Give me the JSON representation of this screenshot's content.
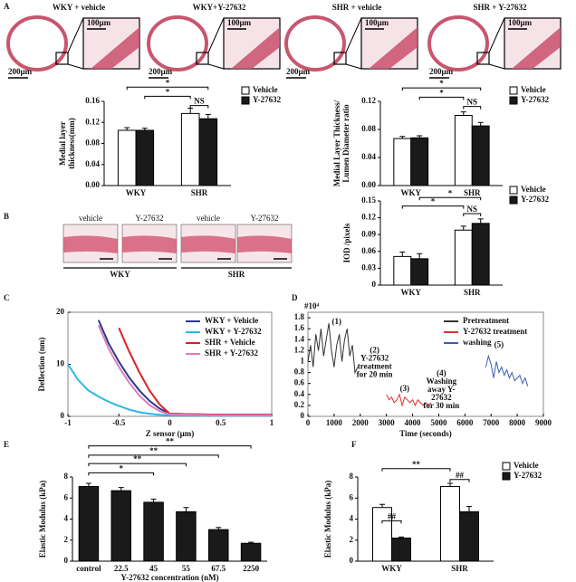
{
  "panel_labels": [
    "A",
    "B",
    "C",
    "D",
    "E",
    "F"
  ],
  "a_images": [
    {
      "caption": "WKY + vehicle",
      "zoom_scale": "100µm",
      "scale": "200µm"
    },
    {
      "caption": "WKY+Y-27632",
      "zoom_scale": "100µm",
      "scale": "200µm"
    },
    {
      "caption": "SHR + vehicle",
      "zoom_scale": "100µm",
      "scale": "200µm"
    },
    {
      "caption": "SHR + Y-27632",
      "zoom_scale": "100µm",
      "scale": "200µm"
    }
  ],
  "b_images": {
    "labels": [
      "vehicle",
      "Y-27632",
      "vehicle",
      "Y-27632"
    ],
    "groups": [
      "WKY",
      "SHR"
    ]
  },
  "chart_data": [
    {
      "type": "bar",
      "ylabel": [
        "Medial layer",
        "thickness(mm)"
      ],
      "categories": [
        "WKY",
        "SHR"
      ],
      "series": [
        {
          "name": "Vehicle",
          "color": "#ffffff",
          "values": [
            0.105,
            0.137
          ],
          "errors": [
            0.005,
            0.01
          ]
        },
        {
          "name": "Y-27632",
          "color": "#1a1a1a",
          "values": [
            0.105,
            0.127
          ],
          "errors": [
            0.004,
            0.008
          ]
        }
      ],
      "ylim": [
        0,
        0.16
      ],
      "yticks": [
        {
          "value": 0,
          "label": "0.00"
        },
        0.04,
        0.08,
        0.12,
        0.16
      ],
      "annotations": [
        "*",
        "*",
        "NS"
      ],
      "legend": "right"
    },
    {
      "type": "bar",
      "ylabel": [
        "Medial Layer Thickness/",
        "Lumen Diameter ratio"
      ],
      "categories": [
        "WKY",
        "SHR"
      ],
      "series": [
        {
          "name": "Vehicle",
          "color": "#ffffff",
          "values": [
            0.067,
            0.1
          ],
          "errors": [
            0.003,
            0.005
          ]
        },
        {
          "name": "Y-27632",
          "color": "#1a1a1a",
          "values": [
            0.068,
            0.085
          ],
          "errors": [
            0.003,
            0.005
          ]
        }
      ],
      "ylim": [
        0,
        0.12
      ],
      "yticks": [
        {
          "value": 0,
          "label": "0.00"
        },
        0.04,
        0.08,
        0.12
      ],
      "annotations": [
        "*",
        "*",
        "NS"
      ],
      "legend": "right"
    },
    {
      "type": "bar",
      "ylabel": [
        "IOD /pixels"
      ],
      "categories": [
        "WKY",
        "SHR"
      ],
      "series": [
        {
          "name": "Vehicle",
          "color": "#ffffff",
          "values": [
            0.051,
            0.098
          ],
          "errors": [
            0.008,
            0.007
          ]
        },
        {
          "name": "Y-27632",
          "color": "#1a1a1a",
          "values": [
            0.047,
            0.11
          ],
          "errors": [
            0.009,
            0.008
          ]
        }
      ],
      "ylim": [
        0,
        0.15
      ],
      "yticks": [
        0,
        0.03,
        0.06,
        0.09,
        0.12,
        0.15
      ],
      "annotations": [
        "*",
        "*",
        "NS"
      ],
      "legend": "right"
    },
    {
      "type": "line",
      "xlabel": "Z sensor (µm)",
      "ylabel": [
        "Deflection (nm)"
      ],
      "x": [
        -1,
        -0.9,
        -0.8,
        -0.7,
        -0.6,
        -0.5,
        -0.4,
        -0.3,
        -0.2,
        -0.1,
        0,
        0.5,
        1
      ],
      "series": [
        {
          "name": "WKY + Vehicle",
          "color": "#2b3a8f",
          "values": [
            null,
            null,
            null,
            18.5,
            14,
            10.5,
            7.5,
            5,
            3,
            1.5,
            0.5,
            0.3,
            0.3
          ]
        },
        {
          "name": "WKY + Y-27632",
          "color": "#2ab7e6",
          "values": [
            10,
            7,
            5,
            3.8,
            2.8,
            2,
            1.3,
            0.8,
            0.5,
            0.3,
            0.2,
            0.1,
            0.1
          ]
        },
        {
          "name": "SHR + Vehicle",
          "color": "#e02020",
          "values": [
            null,
            null,
            null,
            null,
            null,
            17,
            12.5,
            8.5,
            5,
            2.3,
            0.5,
            0.3,
            0.3
          ]
        },
        {
          "name": "SHR + Y-27632",
          "color": "#e07bc0",
          "values": [
            null,
            null,
            null,
            17.5,
            13,
            9.5,
            6.5,
            4,
            2.2,
            1,
            0.4,
            0.2,
            0.2
          ]
        }
      ],
      "xlim": [
        -1,
        1
      ],
      "xticks": [
        -1,
        -0.5,
        0,
        0.5,
        1
      ],
      "ylim": [
        0,
        20
      ],
      "yticks": [
        0,
        10,
        20
      ],
      "legend": "upper right"
    },
    {
      "type": "line",
      "xlabel": "Time (seconds)",
      "y_multiplier": "#10⁴",
      "series": [
        {
          "name": "Pretreatment",
          "color": "#333333",
          "x": [
            0,
            100,
            200,
            300,
            400,
            500,
            600,
            700,
            800,
            900,
            1000,
            1100,
            1200,
            1300,
            1400,
            1500,
            1600,
            1700,
            1800,
            1900
          ],
          "values": [
            1.0,
            1.3,
            0.9,
            1.5,
            1.2,
            1.6,
            1.1,
            1.4,
            1.7,
            1.2,
            0.9,
            1.3,
            1.5,
            1.0,
            1.4,
            1.6,
            1.1,
            1.3,
            0.8,
            0.9
          ]
        },
        {
          "name": "Y-27632 treatment",
          "color": "#e03030",
          "x": [
            3000,
            3100,
            3200,
            3300,
            3400,
            3500,
            3600,
            3700,
            3800,
            3900,
            4000,
            4100,
            4200,
            4300,
            4400,
            4500,
            4600,
            4700
          ],
          "values": [
            0.4,
            0.3,
            0.35,
            0.25,
            0.3,
            0.4,
            0.2,
            0.35,
            0.3,
            0.25,
            0.3,
            0.2,
            0.3,
            0.25,
            0.2,
            0.25,
            0.2,
            0.25
          ]
        },
        {
          "name": "washing",
          "color": "#3a5fb0",
          "x": [
            6800,
            6900,
            7000,
            7100,
            7200,
            7300,
            7400,
            7500,
            7600,
            7700,
            7800,
            7900,
            8000,
            8100,
            8200,
            8300,
            8400
          ],
          "values": [
            0.9,
            1.1,
            0.95,
            0.7,
            1.0,
            0.8,
            0.9,
            0.75,
            0.85,
            0.7,
            0.8,
            0.65,
            0.7,
            0.75,
            0.6,
            0.7,
            0.55
          ]
        }
      ],
      "xlim": [
        0,
        9000
      ],
      "xticks": [
        0,
        1000,
        2000,
        3000,
        4000,
        5000,
        6000,
        7000,
        8000,
        9000
      ],
      "ylim": [
        0,
        1.9
      ],
      "yticks": [
        0,
        0.2,
        0.4,
        0.6,
        0.8,
        1,
        1.2,
        1.4,
        1.6,
        1.8
      ],
      "annotations": [
        [
          "(1)"
        ],
        [
          "(2)",
          "Y-27632",
          "treatment",
          "for 20 min"
        ],
        [
          "(3)"
        ],
        [
          "(4)",
          "Washing",
          "away Y-",
          "27632",
          "for 30 min"
        ],
        [
          "(5)"
        ]
      ],
      "legend": "upper right"
    },
    {
      "type": "bar",
      "xlabel": "Y-27632 concentration (nM)",
      "ylabel": [
        "Elastic Modulus (kPa)"
      ],
      "categories": [
        "control",
        "22.5",
        "45",
        "55",
        "67.5",
        "2250"
      ],
      "series": [
        {
          "color": "#1a1a1a",
          "values": [
            7.1,
            6.7,
            5.6,
            4.7,
            3.0,
            1.7
          ],
          "errors": [
            0.3,
            0.3,
            0.3,
            0.4,
            0.2,
            0.1
          ]
        }
      ],
      "ylim": [
        0,
        8
      ],
      "yticks": [
        0,
        2,
        4,
        6,
        8
      ],
      "annotations": [
        "**",
        "**",
        "**",
        "*"
      ]
    },
    {
      "type": "bar",
      "ylabel": [
        "Elastic Modulus (kPa)"
      ],
      "categories": [
        "WKY",
        "SHR"
      ],
      "series": [
        {
          "name": "Vehicle",
          "color": "#ffffff",
          "values": [
            5.1,
            7.1
          ],
          "errors": [
            0.3,
            0.3
          ]
        },
        {
          "name": "Y-27632",
          "color": "#1a1a1a",
          "values": [
            2.2,
            4.7
          ],
          "errors": [
            0.1,
            0.5
          ]
        }
      ],
      "ylim": [
        0,
        8
      ],
      "yticks": [
        0,
        2,
        4,
        6,
        8
      ],
      "annotations": [
        "##",
        "##",
        "**"
      ],
      "legend": "right"
    }
  ]
}
